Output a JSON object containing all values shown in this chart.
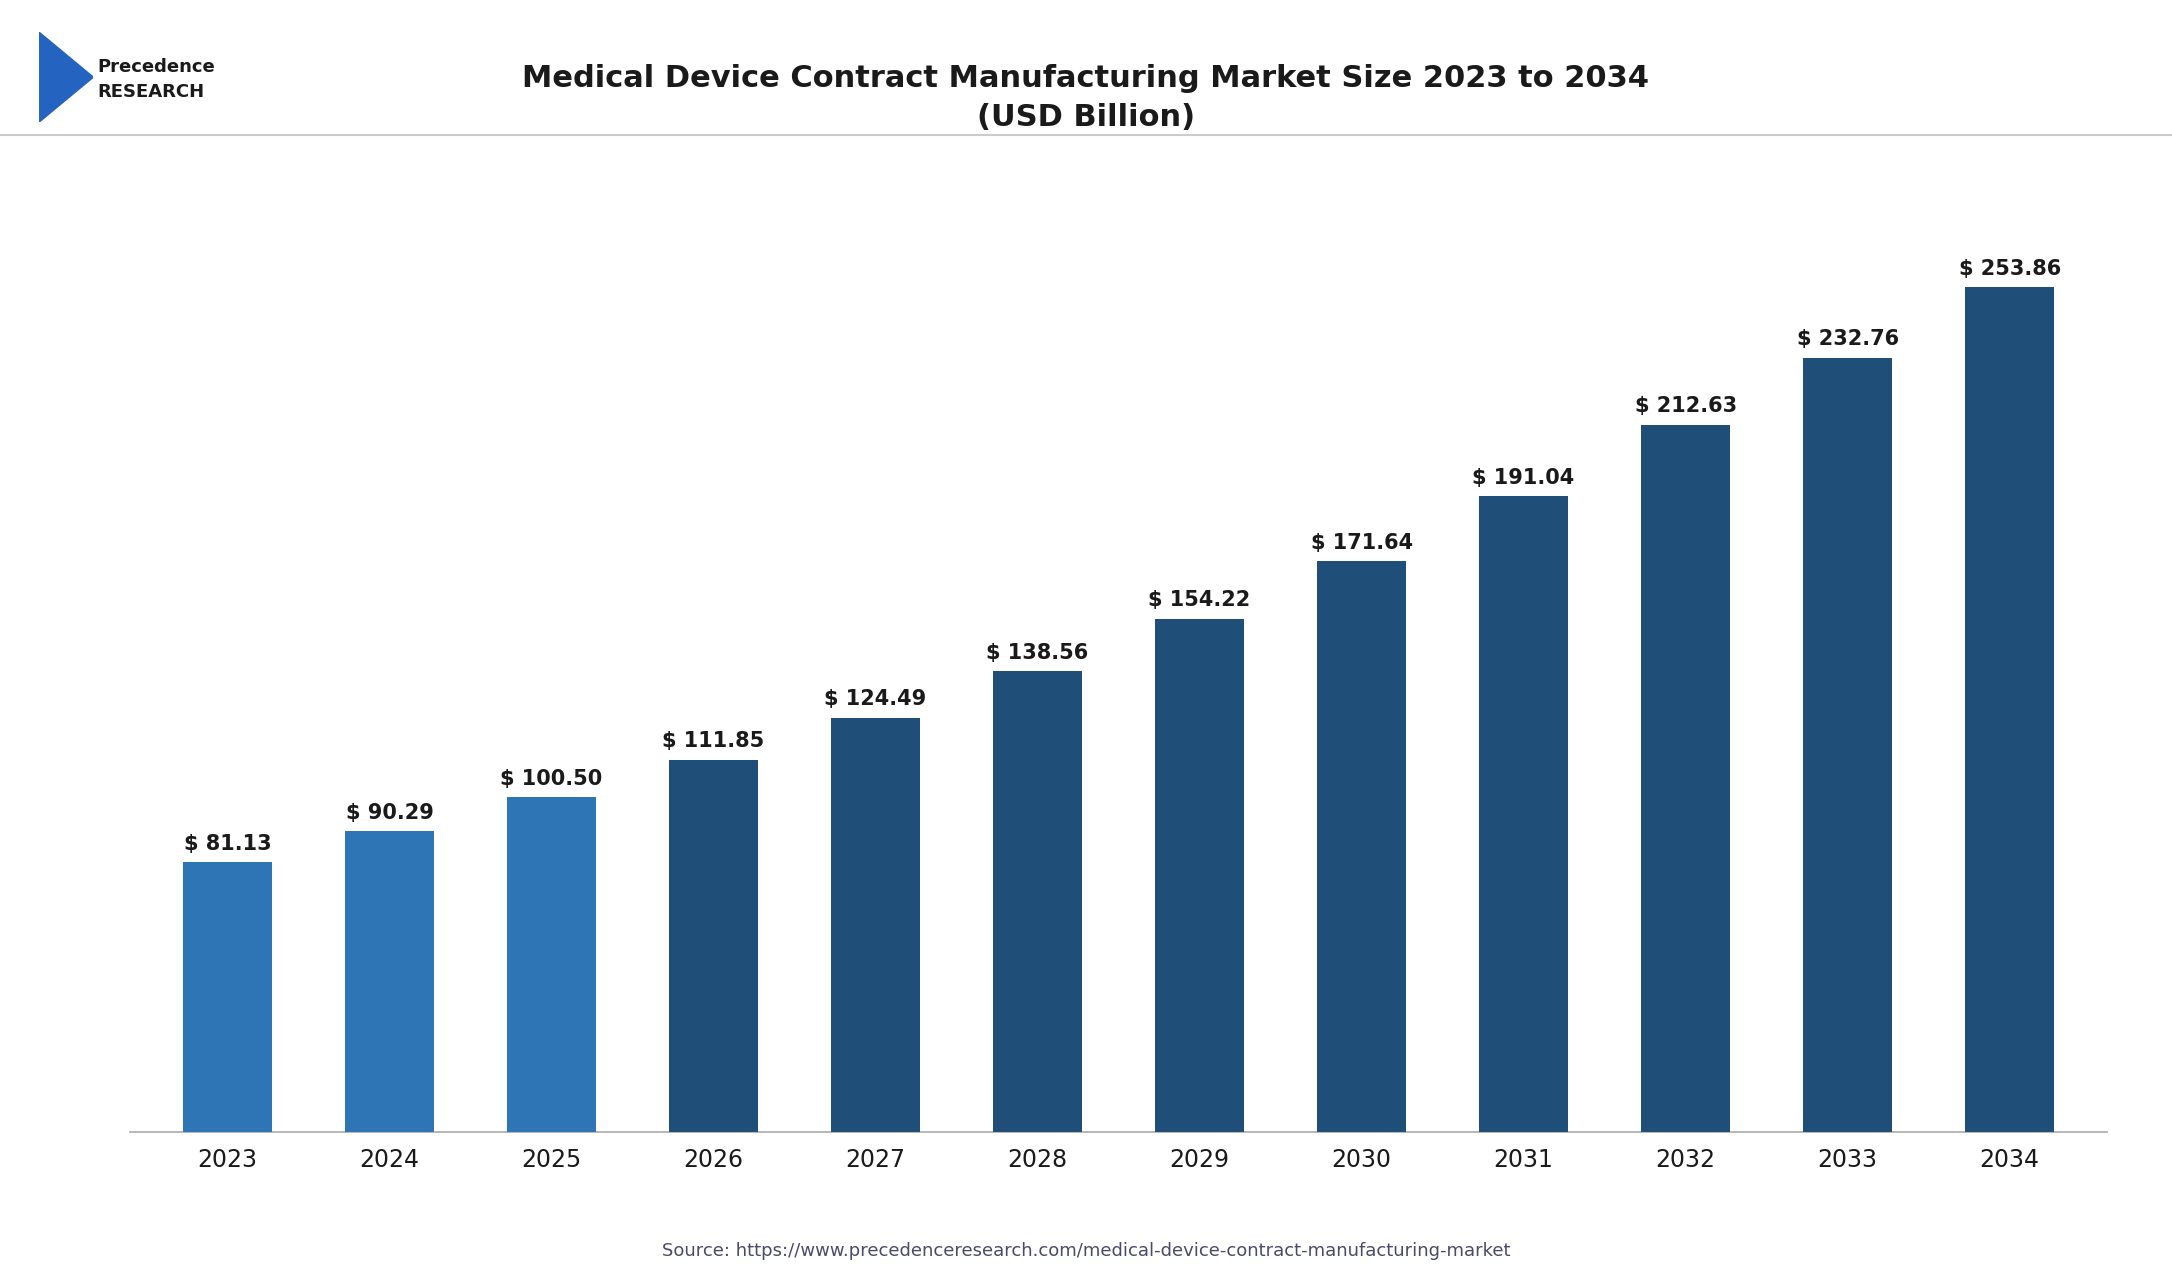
{
  "title_line1": "Medical Device Contract Manufacturing Market Size 2023 to 2034",
  "title_line2": "(USD Billion)",
  "source_text": "Source: https://www.precedenceresearch.com/medical-device-contract-manufacturing-market",
  "years": [
    2023,
    2024,
    2025,
    2026,
    2027,
    2028,
    2029,
    2030,
    2031,
    2032,
    2033,
    2034
  ],
  "values": [
    81.13,
    90.29,
    100.5,
    111.85,
    124.49,
    138.56,
    154.22,
    171.64,
    191.04,
    212.63,
    232.76,
    253.86
  ],
  "bar_colors": [
    "#2E75B6",
    "#2E75B6",
    "#2E75B6",
    "#1F4E79",
    "#1F4E79",
    "#1F4E79",
    "#1F4E79",
    "#1F4E79",
    "#1F4E79",
    "#1F4E79",
    "#1F4E79",
    "#1F4E79"
  ],
  "label_color": "#1a1a1a",
  "axis_line_color": "#999999",
  "background_color": "#ffffff",
  "title_color": "#1a1a1a",
  "source_color": "#4a4a6a",
  "bar_width": 0.55,
  "ylim": [
    0,
    290
  ],
  "figsize": [
    21.72,
    12.86
  ],
  "dpi": 100
}
